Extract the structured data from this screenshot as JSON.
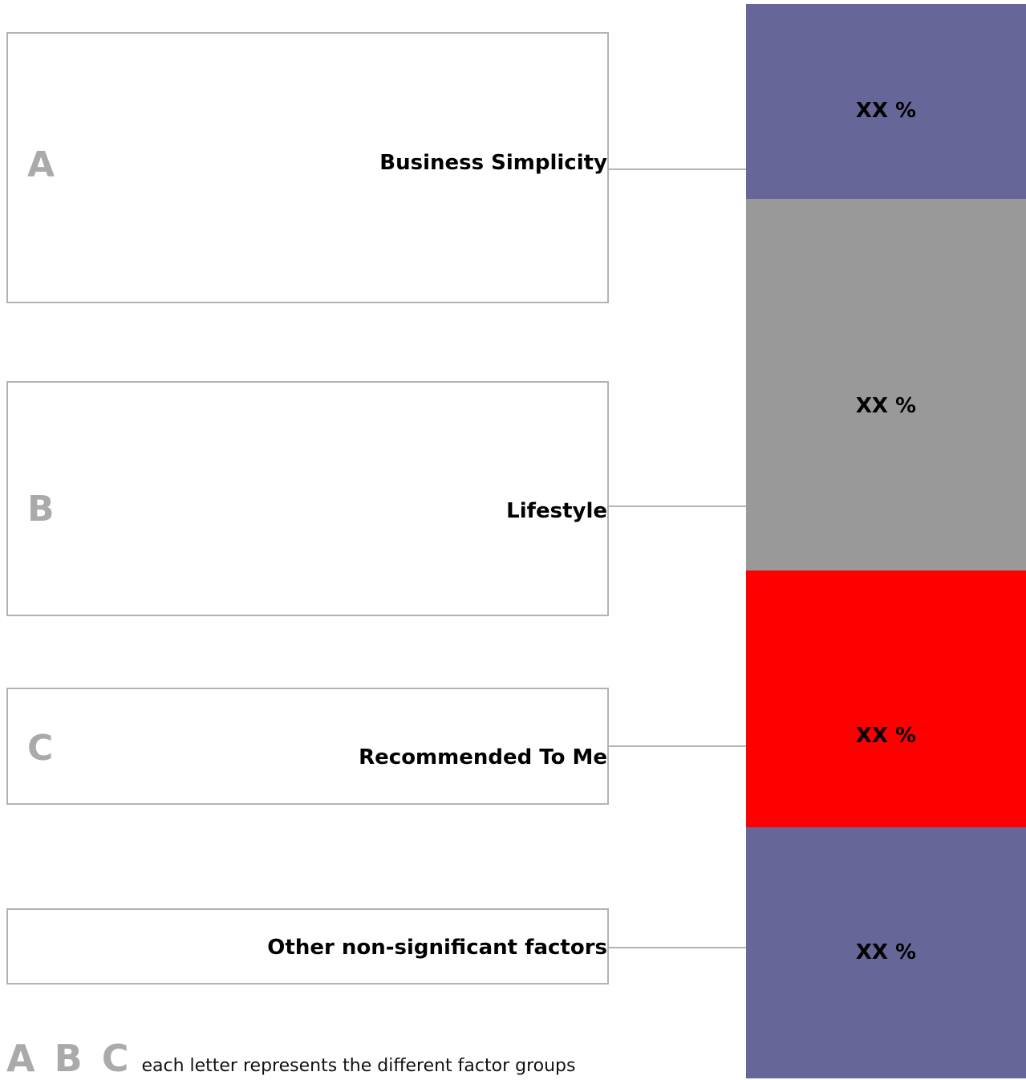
{
  "factors": [
    {
      "letter": "A",
      "label": "Business Simplicity"
    },
    {
      "letter": "B",
      "label": "Lifestyle"
    },
    {
      "letter": "C",
      "label": "Recommended To Me"
    },
    {
      "letter": "",
      "label": "Other non-significant factors"
    }
  ],
  "bar_segments": [
    {
      "value_label": "XX %",
      "color": "#666699"
    },
    {
      "value_label": "XX %",
      "color": "#999999"
    },
    {
      "value_label": "XX %",
      "color": "#ff0000"
    },
    {
      "value_label": "XX %",
      "color": "#666699"
    }
  ],
  "legend": {
    "letters": "A B C",
    "text": "each letter represents the different factor groups"
  },
  "colors": {
    "box_border": "#b3b3b3",
    "letter_gray": "#aaaaaa"
  }
}
